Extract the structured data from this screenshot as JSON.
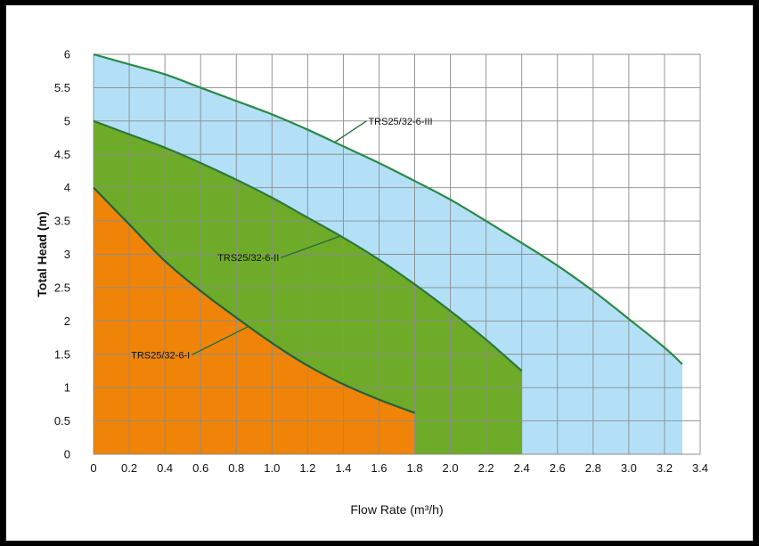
{
  "chart_data": {
    "type": "area",
    "title": "",
    "xlabel": "Flow Rate (m³/h)",
    "ylabel": "Total Head (m)",
    "xlim": [
      0,
      3.4
    ],
    "ylim": [
      0,
      6
    ],
    "xticks": [
      0,
      0.2,
      0.4,
      0.6,
      0.8,
      1.0,
      1.2,
      1.4,
      1.6,
      1.8,
      2.0,
      2.2,
      2.4,
      2.6,
      2.8,
      3.0,
      3.2,
      3.4
    ],
    "xtick_labels": [
      "0",
      "0.2",
      "0.4",
      "0.6",
      "0.8",
      "1.0",
      "1.2",
      "1.4",
      "1.6",
      "1.8",
      "2.0",
      "2.2",
      "2.4",
      "2.6",
      "2.8",
      "3.0",
      "3.2",
      "3.4"
    ],
    "yticks": [
      0,
      0.5,
      1,
      1.5,
      2,
      2.5,
      3,
      3.5,
      4,
      4.5,
      5,
      5.5,
      6
    ],
    "ytick_labels": [
      "0",
      "0.5",
      "1",
      "1.5",
      "2",
      "2.5",
      "3",
      "3.5",
      "4",
      "4.5",
      "5",
      "5.5",
      "6"
    ],
    "grid": true,
    "series": [
      {
        "name": "TRS25/32-6-III",
        "fill": "#b3e0f7",
        "line": "#2a8a48",
        "x": [
          0,
          0.2,
          0.4,
          0.6,
          0.8,
          1.0,
          1.2,
          1.4,
          1.6,
          1.8,
          2.0,
          2.2,
          2.4,
          2.6,
          2.8,
          3.0,
          3.2,
          3.3
        ],
        "y": [
          6.0,
          5.85,
          5.7,
          5.5,
          5.3,
          5.1,
          4.87,
          4.62,
          4.37,
          4.1,
          3.82,
          3.5,
          3.17,
          2.83,
          2.45,
          2.03,
          1.6,
          1.35
        ]
      },
      {
        "name": "TRS25/32-6-II",
        "fill": "#6eab28",
        "line": "#2a7a38",
        "x": [
          0,
          0.2,
          0.4,
          0.6,
          0.8,
          1.0,
          1.2,
          1.4,
          1.6,
          1.8,
          2.0,
          2.2,
          2.4
        ],
        "y": [
          5.0,
          4.8,
          4.6,
          4.37,
          4.12,
          3.85,
          3.55,
          3.25,
          2.92,
          2.55,
          2.15,
          1.72,
          1.25
        ]
      },
      {
        "name": "TRS25/32-6-I",
        "fill": "#ef8408",
        "line": "#24603a",
        "x": [
          0,
          0.2,
          0.4,
          0.6,
          0.8,
          1.0,
          1.2,
          1.4,
          1.6,
          1.8
        ],
        "y": [
          4.0,
          3.45,
          2.9,
          2.45,
          2.05,
          1.67,
          1.33,
          1.05,
          0.82,
          0.62
        ]
      }
    ],
    "annotations": [
      {
        "text": "TRS25/32-6-III",
        "series": "TRS25/32-6-III",
        "x": 1.53,
        "y": 5.0,
        "point_x": 1.35,
        "point_y": 4.68
      },
      {
        "text": "TRS25/32-6-II",
        "series": "TRS25/32-6-II",
        "x": 1.05,
        "y": 2.95,
        "point_x": 1.38,
        "point_y": 3.27
      },
      {
        "text": "TRS25/32-6-I",
        "series": "TRS25/32-6-I",
        "x": 0.55,
        "y": 1.49,
        "point_x": 0.87,
        "point_y": 1.92
      }
    ]
  }
}
